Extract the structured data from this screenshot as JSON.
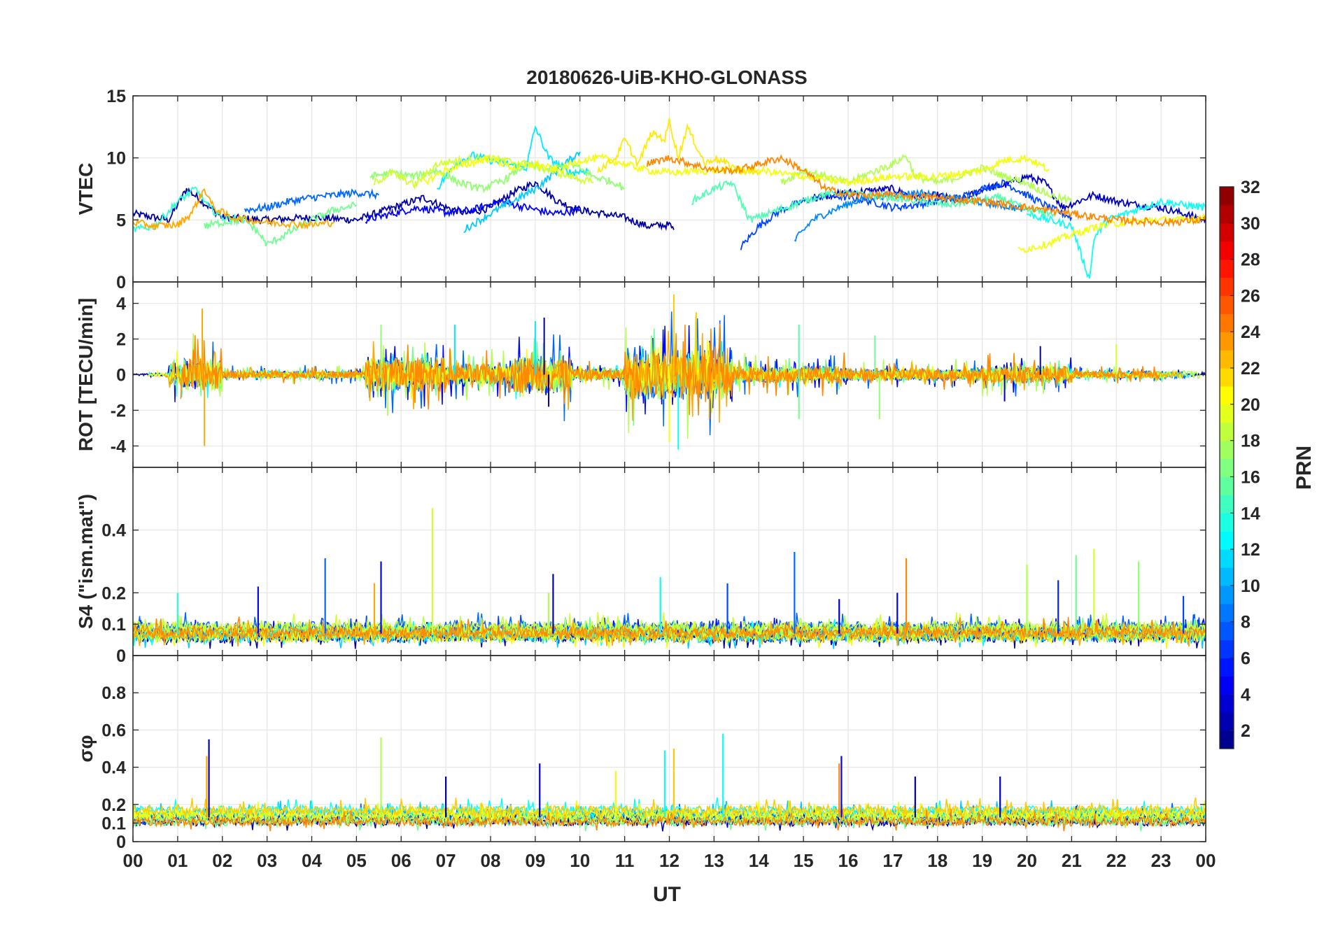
{
  "figure": {
    "title": "20180626-UiB-KHO-GLONASS",
    "xlabel": "UT"
  },
  "chart_data": [
    {
      "type": "line",
      "panel": "vtec",
      "ylabel": "VTEC",
      "ylim": [
        0,
        15
      ],
      "yticks": [
        0,
        5,
        10,
        15
      ],
      "xlim": [
        0,
        24
      ],
      "grid": true,
      "series": [
        {
          "name": "PRN 2",
          "prn": 2,
          "x": [
            0,
            0.8,
            1.2,
            2.0,
            3.0,
            4.0,
            5.0,
            5.5,
            6.0,
            6.5,
            7.0,
            7.5,
            8.0,
            8.5,
            9.0,
            9.5,
            10.0,
            10.5,
            11.0,
            11.5,
            12.0,
            12.1
          ],
          "values": [
            5.5,
            5.0,
            7.5,
            5.2,
            5.0,
            5.2,
            5.0,
            5.6,
            6.2,
            6.8,
            6.0,
            5.5,
            6.0,
            7.2,
            8.0,
            6.5,
            5.8,
            5.5,
            5.2,
            4.5,
            4.6,
            4.2
          ]
        },
        {
          "name": "PRN 3",
          "prn": 3,
          "x": [
            15.2,
            16.0,
            17.0,
            17.5,
            18.0,
            18.5,
            19.0,
            19.5,
            20.0,
            20.4,
            20.8,
            21.5,
            22.0,
            22.5,
            23.0,
            23.5,
            24.0
          ],
          "values": [
            6.8,
            7.2,
            7.5,
            6.8,
            7.0,
            6.5,
            7.5,
            7.8,
            8.5,
            8.0,
            6.0,
            7.0,
            6.5,
            6.2,
            6.0,
            5.5,
            5.0
          ]
        },
        {
          "name": "PRN 5",
          "prn": 5,
          "x": [
            5.2,
            5.8,
            6.4,
            7.0,
            7.6,
            8.2,
            8.8,
            9.4,
            10.0
          ],
          "values": [
            5.0,
            5.5,
            6.0,
            5.6,
            5.8,
            6.5,
            6.0,
            5.5,
            5.8
          ]
        },
        {
          "name": "PRN 7",
          "prn": 7,
          "x": [
            13.6,
            14.0,
            14.5,
            15.0,
            15.5,
            16.0,
            16.5,
            17.0,
            17.5,
            18.0,
            18.5,
            19.0,
            19.5,
            20.0,
            20.5,
            21.0
          ],
          "values": [
            2.8,
            4.5,
            5.8,
            6.5,
            7.0,
            6.8,
            6.5,
            6.0,
            6.2,
            6.5,
            6.8,
            7.5,
            8.0,
            7.0,
            6.0,
            5.2
          ]
        },
        {
          "name": "PRN 8",
          "prn": 8,
          "x": [
            2.5,
            3.0,
            3.5,
            4.0,
            4.5,
            5.0,
            5.5
          ],
          "values": [
            5.8,
            6.0,
            6.5,
            6.8,
            7.0,
            7.2,
            7.0
          ]
        },
        {
          "name": "PRN 9",
          "prn": 9,
          "x": [
            14.8,
            15.2,
            15.8,
            16.4,
            17.0,
            17.6,
            18.2,
            18.8,
            19.4,
            20.0
          ],
          "values": [
            3.3,
            5.0,
            6.0,
            6.8,
            7.0,
            7.2,
            6.8,
            6.5,
            6.2,
            5.8
          ]
        },
        {
          "name": "PRN 11",
          "prn": 11,
          "x": [
            7.4,
            8.0,
            8.5,
            9.0,
            9.5,
            10.0
          ],
          "values": [
            4.2,
            5.5,
            6.5,
            7.5,
            9.0,
            10.5
          ]
        },
        {
          "name": "PRN 12",
          "prn": 12,
          "x": [
            6.8,
            7.2,
            7.6,
            8.0,
            8.4,
            8.8,
            9.0,
            9.3,
            9.8,
            10.2
          ],
          "values": [
            7.5,
            9.5,
            10.2,
            9.8,
            9.5,
            9.2,
            12.5,
            10.0,
            8.8,
            9.0
          ]
        },
        {
          "name": "PRN 13",
          "prn": 13,
          "x": [
            20.0,
            20.5,
            21.0,
            21.4,
            21.5,
            21.8,
            22.2,
            22.6,
            23.0,
            23.5,
            24.0
          ],
          "values": [
            5.5,
            5.0,
            4.5,
            0.2,
            3.5,
            5.0,
            5.5,
            6.0,
            6.5,
            6.2,
            6.0
          ]
        },
        {
          "name": "PRN 14",
          "prn": 14,
          "x": [
            0,
            0.5,
            1.0,
            1.4,
            1.7,
            2.0,
            2.5
          ],
          "values": [
            4.2,
            4.5,
            6.5,
            7.5,
            6.0,
            5.2,
            5.0
          ]
        },
        {
          "name": "PRN 15",
          "prn": 15,
          "x": [
            12.5,
            13.0,
            13.4,
            13.8,
            14.2,
            14.6,
            15.0,
            15.4,
            15.8,
            16.4,
            17.0,
            17.6,
            18.2,
            18.8,
            19.4,
            20.0,
            20.6
          ],
          "values": [
            6.5,
            7.5,
            8.0,
            5.0,
            5.5,
            6.0,
            6.5,
            7.0,
            7.2,
            7.0,
            6.8,
            6.5,
            6.2,
            6.5,
            6.8,
            5.8,
            5.5
          ]
        },
        {
          "name": "PRN 16",
          "prn": 16,
          "x": [
            1.6,
            2.0,
            2.5,
            2.8,
            3.0,
            3.5,
            4.0,
            4.5,
            5.0
          ],
          "values": [
            4.5,
            4.8,
            5.0,
            4.0,
            3.0,
            4.0,
            5.0,
            5.8,
            6.2
          ]
        },
        {
          "name": "PRN 17",
          "prn": 17,
          "x": [
            5.3,
            5.8,
            6.3,
            6.8,
            7.3,
            7.8,
            8.3,
            8.8,
            9.3,
            9.8,
            10.3,
            10.8,
            11.0
          ],
          "values": [
            8.5,
            8.8,
            8.5,
            9.0,
            8.0,
            7.5,
            8.2,
            9.5,
            9.0,
            9.5,
            8.5,
            8.0,
            7.5
          ]
        },
        {
          "name": "PRN 18",
          "prn": 18,
          "x": [
            14.5,
            15.0,
            15.5,
            16.0,
            16.5,
            17.0,
            17.3,
            17.5,
            18.0,
            18.5,
            19.0,
            19.5,
            20.0,
            20.5,
            21.0
          ],
          "values": [
            8.0,
            9.0,
            8.5,
            8.0,
            8.8,
            9.5,
            10.2,
            8.5,
            8.0,
            8.5,
            9.2,
            8.5,
            8.0,
            7.0,
            6.5
          ]
        },
        {
          "name": "PRN 19",
          "prn": 19,
          "x": [
            5.4,
            5.8,
            6.3,
            6.8,
            7.3,
            7.8,
            8.3,
            8.8,
            9.3,
            9.8,
            10.3
          ],
          "values": [
            8.0,
            8.8,
            7.8,
            9.5,
            9.8,
            10.0,
            9.8,
            9.5,
            9.0,
            8.5,
            8.0
          ]
        },
        {
          "name": "PRN 20",
          "prn": 20,
          "x": [
            6.5,
            7.0,
            7.5,
            8.0,
            8.5,
            9.0,
            9.5,
            10.0,
            10.5,
            11.0,
            11.5,
            12.0,
            13.0,
            14.0,
            15.0,
            16.0,
            17.0,
            18.0,
            19.0,
            19.5,
            20.0,
            20.5
          ],
          "values": [
            8.0,
            9.0,
            9.5,
            10.0,
            9.2,
            9.5,
            9.0,
            9.8,
            10.0,
            9.5,
            9.0,
            8.8,
            9.0,
            9.0,
            8.5,
            8.0,
            8.5,
            8.5,
            9.0,
            9.8,
            10.0,
            9.0
          ]
        },
        {
          "name": "PRN 20b",
          "prn": 20,
          "x": [
            19.8,
            20.4,
            21.0,
            21.6,
            22.2,
            22.8,
            23.4,
            24.0
          ],
          "values": [
            2.5,
            3.0,
            3.8,
            4.5,
            4.8,
            5.0,
            5.0,
            5.2
          ]
        },
        {
          "name": "PRN 21",
          "prn": 21,
          "x": [
            10.4,
            10.8,
            11.0,
            11.3,
            11.6,
            11.9,
            12.0,
            12.2,
            12.4,
            12.6,
            12.8,
            13.0,
            13.3,
            13.6,
            14.0
          ],
          "values": [
            9.0,
            10.0,
            11.5,
            9.5,
            12.0,
            11.5,
            13.0,
            10.0,
            12.5,
            11.0,
            9.5,
            10.0,
            9.5,
            9.0,
            8.8
          ]
        },
        {
          "name": "PRN 23",
          "prn": 23,
          "x": [
            0,
            0.5,
            1.0,
            1.3,
            1.6,
            1.8,
            2.2,
            3.0,
            4.0,
            4.5
          ],
          "values": [
            4.8,
            4.5,
            4.6,
            5.5,
            7.5,
            6.0,
            5.2,
            4.8,
            4.6,
            4.8
          ]
        },
        {
          "name": "PRN 24",
          "prn": 24,
          "x": [
            11.5,
            12.0,
            12.5,
            13.0,
            13.5,
            14.0,
            14.5,
            15.0,
            15.5,
            16.0,
            17.0,
            18.0,
            19.0,
            20.0,
            21.0,
            22.0,
            23.0,
            24.0
          ],
          "values": [
            9.5,
            10.0,
            9.5,
            9.0,
            9.0,
            9.5,
            10.0,
            9.0,
            7.5,
            7.0,
            7.0,
            6.8,
            6.5,
            6.0,
            5.5,
            5.0,
            4.8,
            5.0
          ]
        }
      ]
    },
    {
      "type": "line",
      "panel": "rot",
      "ylabel": "ROT [TECU/min]",
      "ylim": [
        -5.2,
        5.2
      ],
      "yticks": [
        -4,
        -2,
        0,
        2,
        4
      ],
      "xlim": [
        0,
        24
      ],
      "grid": true,
      "activity": [
        {
          "start": 0.0,
          "end": 0.8,
          "amp": 0.2
        },
        {
          "start": 0.8,
          "end": 2.0,
          "amp": 1.3
        },
        {
          "start": 2.0,
          "end": 5.2,
          "amp": 0.3
        },
        {
          "start": 5.2,
          "end": 7.0,
          "amp": 1.4
        },
        {
          "start": 7.0,
          "end": 8.4,
          "amp": 0.9
        },
        {
          "start": 8.4,
          "end": 9.8,
          "amp": 1.5
        },
        {
          "start": 9.8,
          "end": 11.0,
          "amp": 0.5
        },
        {
          "start": 11.0,
          "end": 13.4,
          "amp": 2.0
        },
        {
          "start": 13.4,
          "end": 16.0,
          "amp": 0.7
        },
        {
          "start": 16.0,
          "end": 19.0,
          "amp": 0.5
        },
        {
          "start": 19.0,
          "end": 21.0,
          "amp": 0.7
        },
        {
          "start": 21.0,
          "end": 24.0,
          "amp": 0.3
        }
      ],
      "spikes": [
        {
          "x": 1.55,
          "y": 3.7,
          "prn": 23
        },
        {
          "x": 1.6,
          "y": -4.0,
          "prn": 23
        },
        {
          "x": 5.55,
          "y": 2.8,
          "prn": 17
        },
        {
          "x": 5.7,
          "y": -2.3,
          "prn": 18
        },
        {
          "x": 7.2,
          "y": 2.8,
          "prn": 12
        },
        {
          "x": 9.2,
          "y": 3.2,
          "prn": 2
        },
        {
          "x": 9.0,
          "y": 3.0,
          "prn": 12
        },
        {
          "x": 9.3,
          "y": -1.8,
          "prn": 2
        },
        {
          "x": 12.1,
          "y": 4.5,
          "prn": 22
        },
        {
          "x": 12.2,
          "y": -4.2,
          "prn": 13
        },
        {
          "x": 12.0,
          "y": -3.8,
          "prn": 20
        },
        {
          "x": 12.6,
          "y": 3.5,
          "prn": 22
        },
        {
          "x": 12.9,
          "y": -2.5,
          "prn": 24
        },
        {
          "x": 14.9,
          "y": 2.8,
          "prn": 15
        },
        {
          "x": 14.9,
          "y": -2.5,
          "prn": 16
        },
        {
          "x": 16.6,
          "y": 2.2,
          "prn": 16
        },
        {
          "x": 16.7,
          "y": -2.5,
          "prn": 17
        },
        {
          "x": 20.3,
          "y": 1.6,
          "prn": 2
        },
        {
          "x": 19.5,
          "y": -1.5,
          "prn": 3
        },
        {
          "x": 22.0,
          "y": 1.7,
          "prn": 19
        }
      ],
      "series_prns": [
        2,
        3,
        5,
        8,
        11,
        13,
        16,
        18,
        19,
        20,
        23,
        24
      ]
    },
    {
      "type": "line",
      "panel": "s4",
      "ylabel": "S4 (\"ism.mat\")",
      "ylim": [
        0,
        0.6
      ],
      "yticks": [
        0,
        0.1,
        0.2,
        0.4
      ],
      "xlim": [
        0,
        24
      ],
      "grid": true,
      "baseline": 0.07,
      "noise": 0.035,
      "spikes": [
        {
          "x": 1.0,
          "y": 0.2,
          "prn": 14
        },
        {
          "x": 2.8,
          "y": 0.22,
          "prn": 5
        },
        {
          "x": 4.3,
          "y": 0.31,
          "prn": 8
        },
        {
          "x": 5.4,
          "y": 0.23,
          "prn": 23
        },
        {
          "x": 5.55,
          "y": 0.3,
          "prn": 5
        },
        {
          "x": 6.7,
          "y": 0.47,
          "prn": 19
        },
        {
          "x": 9.4,
          "y": 0.26,
          "prn": 3
        },
        {
          "x": 9.3,
          "y": 0.2,
          "prn": 18
        },
        {
          "x": 11.8,
          "y": 0.25,
          "prn": 13
        },
        {
          "x": 13.3,
          "y": 0.23,
          "prn": 7
        },
        {
          "x": 14.8,
          "y": 0.33,
          "prn": 8
        },
        {
          "x": 15.8,
          "y": 0.18,
          "prn": 3
        },
        {
          "x": 17.3,
          "y": 0.31,
          "prn": 24
        },
        {
          "x": 17.1,
          "y": 0.2,
          "prn": 5
        },
        {
          "x": 20.0,
          "y": 0.29,
          "prn": 18
        },
        {
          "x": 20.7,
          "y": 0.24,
          "prn": 6
        },
        {
          "x": 21.5,
          "y": 0.34,
          "prn": 19
        },
        {
          "x": 21.1,
          "y": 0.32,
          "prn": 16
        },
        {
          "x": 22.5,
          "y": 0.3,
          "prn": 17
        },
        {
          "x": 23.5,
          "y": 0.19,
          "prn": 7
        }
      ],
      "series_prns": [
        2,
        3,
        5,
        7,
        8,
        11,
        13,
        16,
        18,
        19,
        20,
        23,
        24
      ]
    },
    {
      "type": "line",
      "panel": "sigma_phi",
      "ylabel": "σφ",
      "ylim": [
        0,
        1.0
      ],
      "yticks": [
        0,
        0.1,
        0.2,
        0.4,
        0.6,
        0.8
      ],
      "xlim": [
        0,
        24
      ],
      "xticks": [
        "00",
        "01",
        "02",
        "03",
        "04",
        "05",
        "06",
        "07",
        "08",
        "09",
        "10",
        "11",
        "12",
        "13",
        "14",
        "15",
        "16",
        "17",
        "18",
        "19",
        "20",
        "21",
        "22",
        "23",
        "00"
      ],
      "grid": true,
      "baseline": 0.13,
      "noise": 0.05,
      "spikes": [
        {
          "x": 1.7,
          "y": 0.55,
          "prn": 3
        },
        {
          "x": 1.65,
          "y": 0.46,
          "prn": 23
        },
        {
          "x": 5.55,
          "y": 0.56,
          "prn": 18
        },
        {
          "x": 7.0,
          "y": 0.35,
          "prn": 2
        },
        {
          "x": 9.1,
          "y": 0.42,
          "prn": 3
        },
        {
          "x": 10.8,
          "y": 0.38,
          "prn": 20
        },
        {
          "x": 11.9,
          "y": 0.49,
          "prn": 13
        },
        {
          "x": 12.1,
          "y": 0.5,
          "prn": 22
        },
        {
          "x": 13.2,
          "y": 0.58,
          "prn": 13
        },
        {
          "x": 15.85,
          "y": 0.46,
          "prn": 5
        },
        {
          "x": 15.8,
          "y": 0.42,
          "prn": 24
        },
        {
          "x": 17.5,
          "y": 0.35,
          "prn": 2
        },
        {
          "x": 19.4,
          "y": 0.35,
          "prn": 3
        }
      ],
      "series_prns": [
        2,
        3,
        8,
        11,
        13,
        16,
        18,
        19,
        20,
        22,
        24
      ]
    }
  ],
  "colorbar": {
    "label": "PRN",
    "min": 1,
    "max": 32,
    "ticks": [
      2,
      4,
      6,
      8,
      10,
      12,
      14,
      16,
      18,
      20,
      22,
      24,
      26,
      28,
      30,
      32
    ],
    "colormap": "jet"
  }
}
